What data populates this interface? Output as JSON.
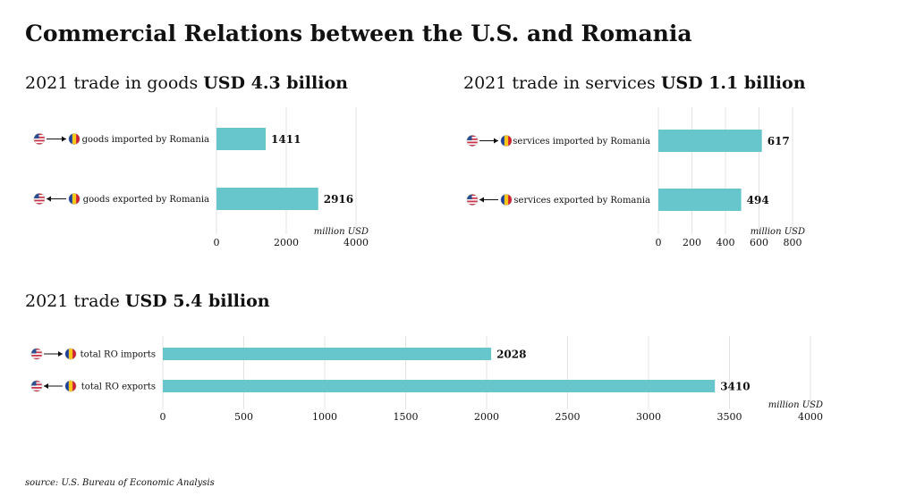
{
  "title": "Commercial Relations between the U.S. and Romania",
  "source": "source: U.S. Bureau of Economic Analysis",
  "colors": {
    "bar": "#67c5cc",
    "grid": "#e3e3e3",
    "text": "#111111",
    "flag_us_stripe": "#c8344a",
    "flag_us_canton": "#2c4f8f",
    "flag_ro_blue": "#1d3f9a",
    "flag_ro_yellow": "#f6c718",
    "flag_ro_red": "#cf2130"
  },
  "sections": [
    {
      "prefix": "2021 trade in goods ",
      "highlight": "USD 4.3 billion"
    },
    {
      "prefix": "2021 trade in services ",
      "highlight": "USD 1.1 billion"
    },
    {
      "prefix": "2021 trade ",
      "highlight": "USD 5.4 billion"
    }
  ],
  "chart_data": [
    {
      "type": "bar",
      "orientation": "horizontal",
      "categories": [
        "goods imported by Romania",
        "goods exported by Romania"
      ],
      "flow_icons": [
        "us-to-ro",
        "ro-to-us"
      ],
      "values": [
        1411,
        2916
      ],
      "data_labels": [
        "1411",
        "2916"
      ],
      "xlabel": "million USD",
      "xlim": [
        0,
        4000
      ],
      "xticks": [
        0,
        2000,
        4000
      ],
      "xtick_labels": [
        "0",
        "2000",
        "4000"
      ],
      "grid": true
    },
    {
      "type": "bar",
      "orientation": "horizontal",
      "categories": [
        "services imported by Romania",
        "services exported by Romania"
      ],
      "flow_icons": [
        "us-to-ro",
        "ro-to-us"
      ],
      "values": [
        617,
        494
      ],
      "data_labels": [
        "617",
        "494"
      ],
      "xlabel": "million USD",
      "xlim": [
        0,
        800
      ],
      "xticks": [
        0,
        200,
        400,
        600,
        800
      ],
      "xtick_labels": [
        "0",
        "200",
        "400",
        "600",
        "800"
      ],
      "grid": true
    },
    {
      "type": "bar",
      "orientation": "horizontal",
      "categories": [
        "total RO imports",
        "total RO exports"
      ],
      "flow_icons": [
        "us-to-ro",
        "ro-to-us"
      ],
      "values": [
        2028,
        3410
      ],
      "data_labels": [
        "2028",
        "3410"
      ],
      "xlabel": "million USD",
      "xlim": [
        0,
        4000
      ],
      "xticks": [
        0,
        500,
        1000,
        1500,
        2000,
        2500,
        3000,
        3500,
        4000
      ],
      "xtick_labels": [
        "0",
        "500",
        "1000",
        "1500",
        "2000",
        "2500",
        "3000",
        "3500",
        "4000"
      ],
      "grid": true
    }
  ]
}
